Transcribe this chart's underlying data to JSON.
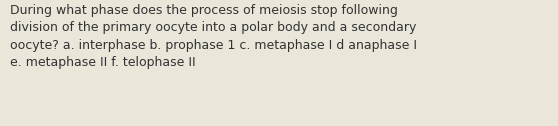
{
  "text": "During what phase does the process of meiosis stop following\ndivision of the primary oocyte into a polar body and a secondary\noocyte? a. interphase b. prophase 1 c. metaphase I d anaphase I\ne. metaphase II f. telophase II",
  "background_color": "#eae6da",
  "text_color": "#333333",
  "font_size": 9.0,
  "fig_width": 5.58,
  "fig_height": 1.26,
  "dpi": 100
}
